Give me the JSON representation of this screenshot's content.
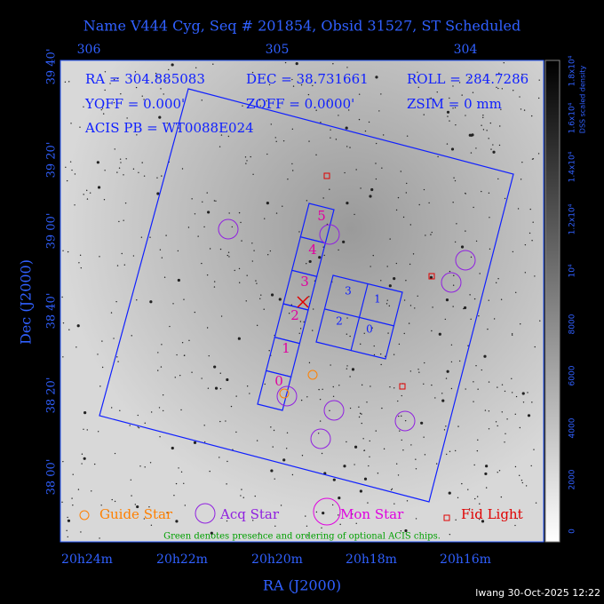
{
  "title": "Name V444 Cyg, Seq # 201854, Obsid 31527, ST Scheduled",
  "info": [
    "RA = 304.885083",
    "DEC = 38.731661",
    "ROLL = 284.7286",
    "YOFF = 0.000'",
    "ZOFF = 0.0000'",
    "ZSIM = 0 mm",
    "ACIS PB = WT0088E024"
  ],
  "top_ticks": [
    "306",
    "305",
    "304"
  ],
  "left_ticks": [
    "39 40'",
    "39 20'",
    "39 00'",
    "38 40'",
    "38 20'",
    "38 00'"
  ],
  "bottom_ticks": [
    "20h24m",
    "20h22m",
    "20h20m",
    "20h18m",
    "20h16m"
  ],
  "x_label": "RA (J2000)",
  "y_label": "Dec (J2000)",
  "colorbar": {
    "label": "DSS scaled density",
    "ticks": [
      "0",
      "2000",
      "4000",
      "6000",
      "8000",
      "10⁴",
      "1.2x10⁴",
      "1.4x10⁴",
      "1.6x10⁴",
      "1.8x10⁴"
    ]
  },
  "acis_s_chips": [
    "0",
    "1",
    "2",
    "3",
    "4",
    "5"
  ],
  "acis_i_chips": [
    "3",
    "1",
    "2",
    "0"
  ],
  "legend": [
    "Guide Star",
    "Acq Star",
    "Mon Star",
    "Fid Light"
  ],
  "note": "Green denotes presence and ordering of optional ACIS chips.",
  "footer": "lwang 30-Oct-2025 12:22"
}
